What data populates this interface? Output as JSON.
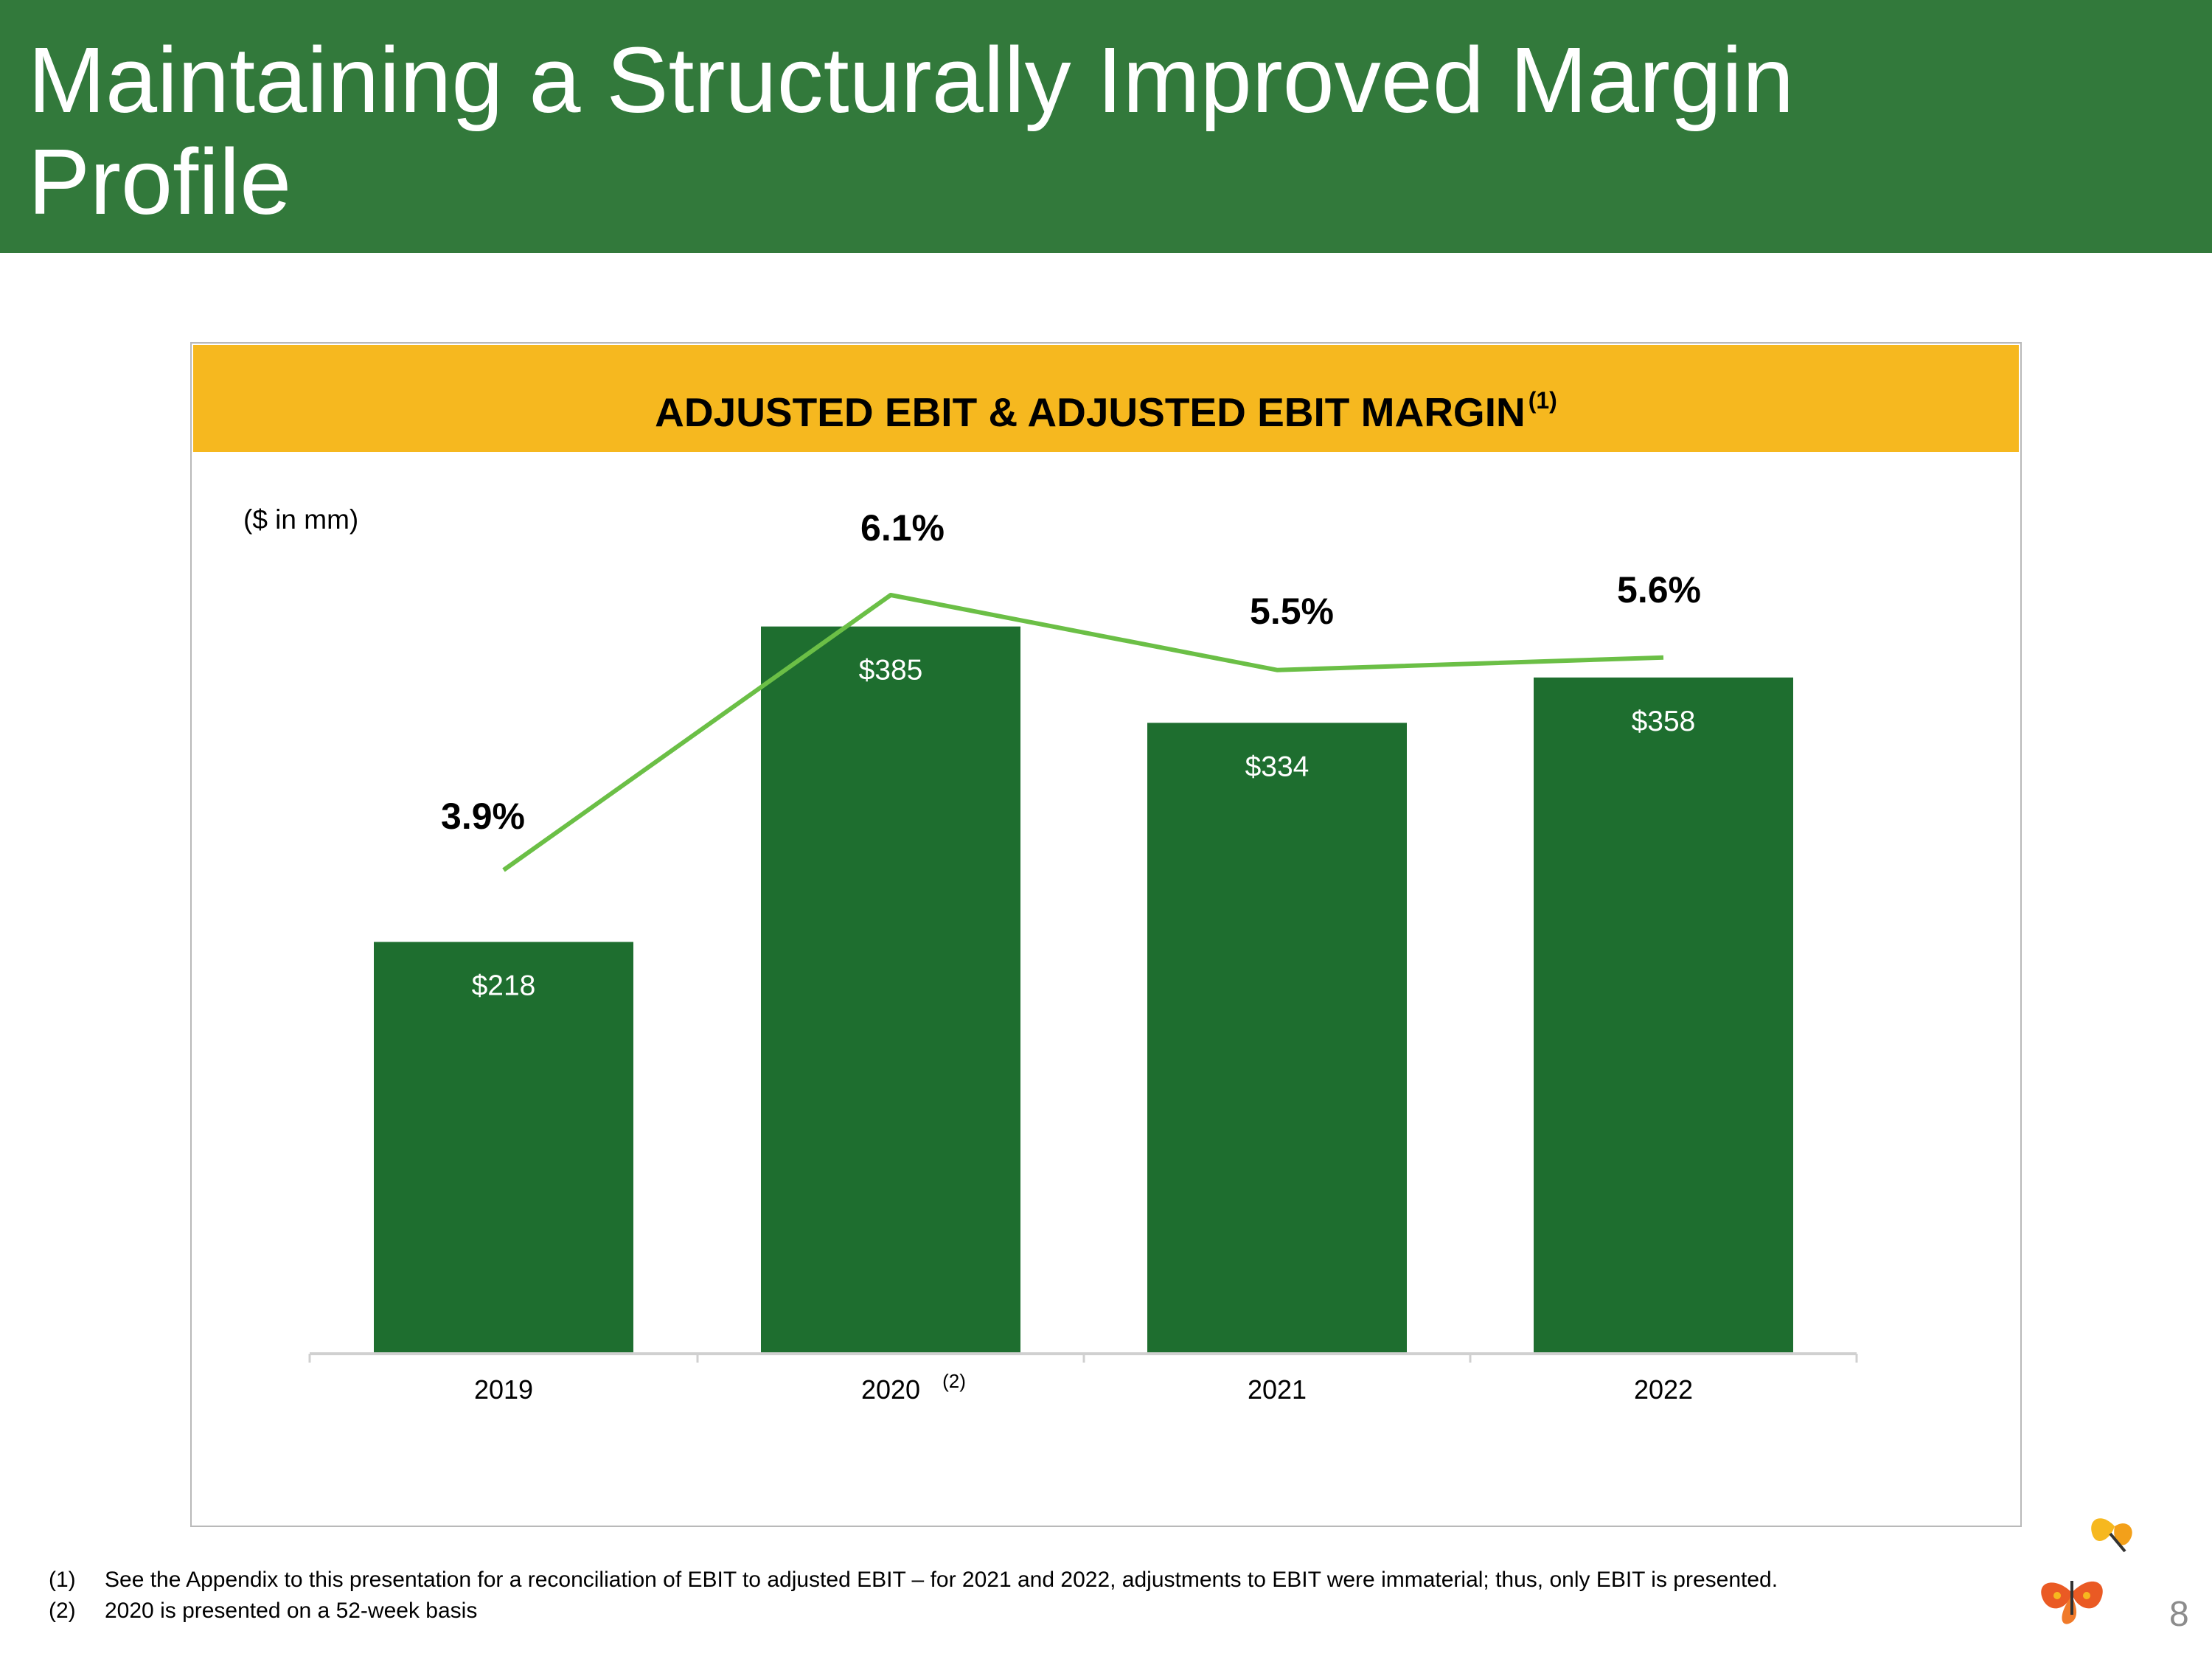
{
  "header": {
    "title": "Maintaining a Structurally Improved Margin Profile"
  },
  "chart_panel": {
    "title": "ADJUSTED EBIT & ADJUSTED EBIT MARGIN",
    "title_superscript": "(1)",
    "unit_label": "($ in mm)"
  },
  "colors": {
    "header_bg": "#32793b",
    "banner_bg": "#f6b81f",
    "bar": "#1e6e2f",
    "line": "#6bbf46",
    "axis": "#d0d0d0"
  },
  "chart_data": {
    "type": "bar",
    "title": "ADJUSTED EBIT & ADJUSTED EBIT MARGIN",
    "categories": [
      "2019",
      "2020",
      "2021",
      "2022"
    ],
    "category_superscripts": [
      "",
      "(2)",
      "",
      ""
    ],
    "series": [
      {
        "name": "Adjusted EBIT",
        "type": "bar",
        "values": [
          218,
          385,
          334,
          358
        ],
        "labels": [
          "$218",
          "$385",
          "$334",
          "$358"
        ]
      },
      {
        "name": "Adjusted EBIT Margin",
        "type": "line",
        "values": [
          3.9,
          6.1,
          5.5,
          5.6
        ],
        "labels": [
          "3.9%",
          "6.1%",
          "5.5%",
          "5.6%"
        ]
      }
    ],
    "ylabel": "($ in mm)",
    "ylim": [
      0,
      420
    ],
    "grid": false
  },
  "footnotes": [
    {
      "num": "(1)",
      "text": "See the Appendix to this presentation for a reconciliation of EBIT to adjusted EBIT – for 2021 and 2022, adjustments to EBIT were immaterial; thus, only EBIT is presented."
    },
    {
      "num": "(2)",
      "text": "2020 is presented on a 52-week basis"
    }
  ],
  "page_number": "8",
  "logo": {
    "icon": "butterfly-logo-icon"
  }
}
